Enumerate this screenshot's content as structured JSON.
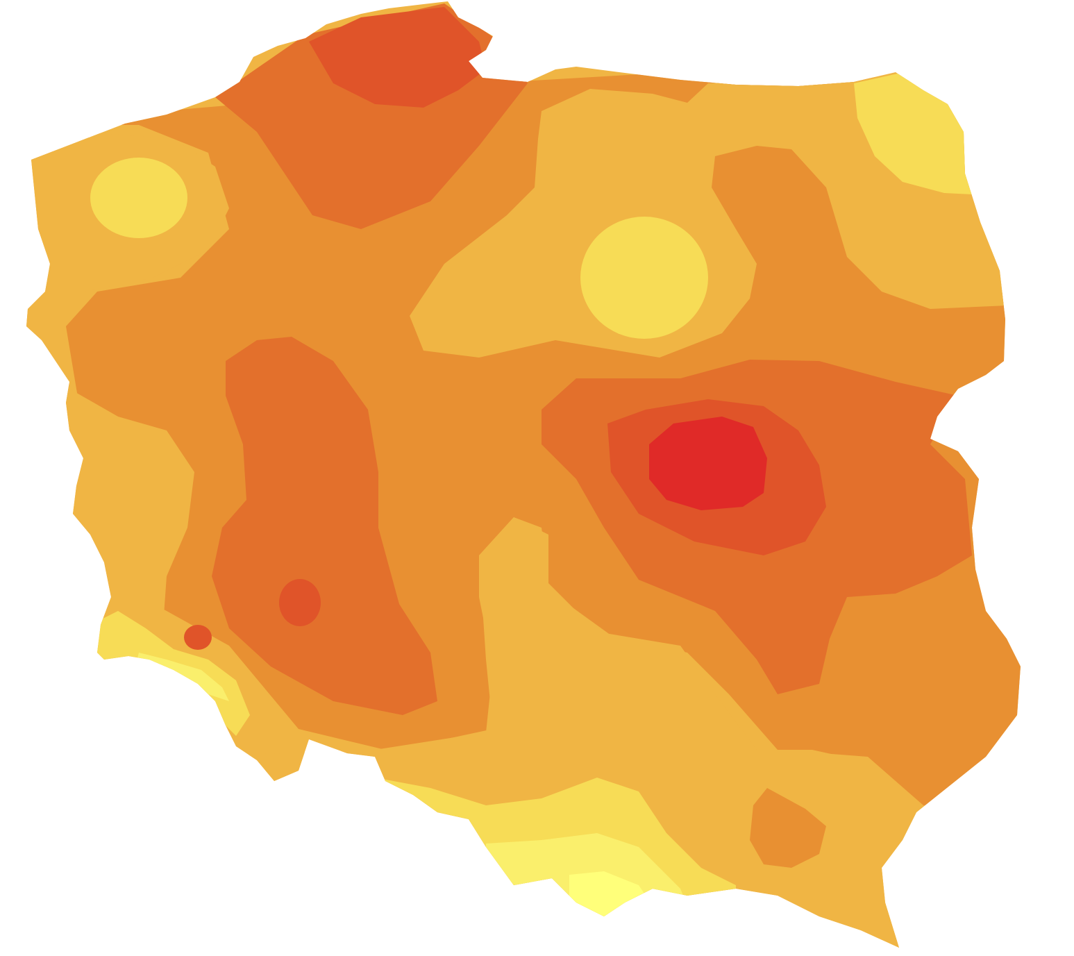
{
  "map": {
    "region": "Poland",
    "type": "filled contour map",
    "labels_visible": false,
    "legend_visible": false
  },
  "palette": {
    "level_0_lightest": "#FFFF7A",
    "level_1": "#FAEF6C",
    "level_2": "#F7DC56",
    "level_3": "#F0B544",
    "level_4": "#E89032",
    "level_5": "#E3702C",
    "level_6": "#E05429",
    "level_7_darkest": "#E02A28"
  },
  "contour_regions": [
    {
      "name": "north-west-low-spot",
      "level": 2
    },
    {
      "name": "north-central-low-spot",
      "level": 2
    },
    {
      "name": "north-east-low-corner",
      "level": 2
    },
    {
      "name": "central-east-peak",
      "level": 7
    },
    {
      "name": "gdansk-coast-high",
      "level": 6
    },
    {
      "name": "west-central-high-spot",
      "level": 6
    },
    {
      "name": "south-west-low-band",
      "level": 1
    },
    {
      "name": "south-mountain-low-band",
      "level": 0
    }
  ]
}
